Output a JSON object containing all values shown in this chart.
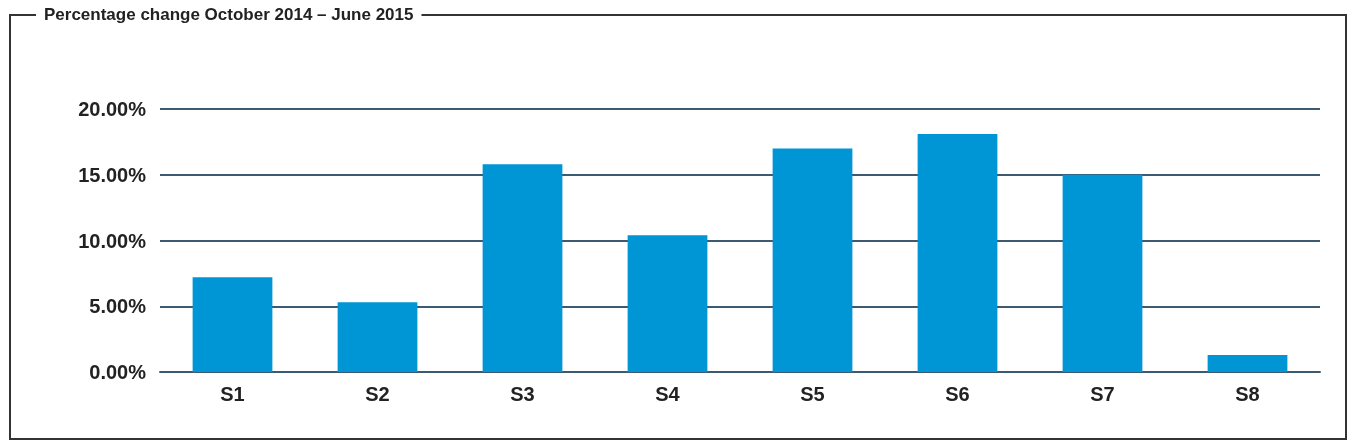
{
  "chart_data": {
    "type": "bar",
    "title": "Percentage change October 2014 – June 2015",
    "categories": [
      "S1",
      "S2",
      "S3",
      "S4",
      "S5",
      "S6",
      "S7",
      "S8"
    ],
    "values": [
      7.2,
      5.3,
      15.8,
      10.4,
      17.0,
      18.1,
      15.0,
      1.3
    ],
    "color": "#0096d6",
    "ylim": [
      0,
      20
    ],
    "yticks": [
      {
        "value": 0,
        "label": "0.00%"
      },
      {
        "value": 5,
        "label": "5.00%"
      },
      {
        "value": 10,
        "label": "10.00%"
      },
      {
        "value": 15,
        "label": "15.00%"
      },
      {
        "value": 20,
        "label": "20.00%"
      }
    ],
    "grid": "y"
  }
}
